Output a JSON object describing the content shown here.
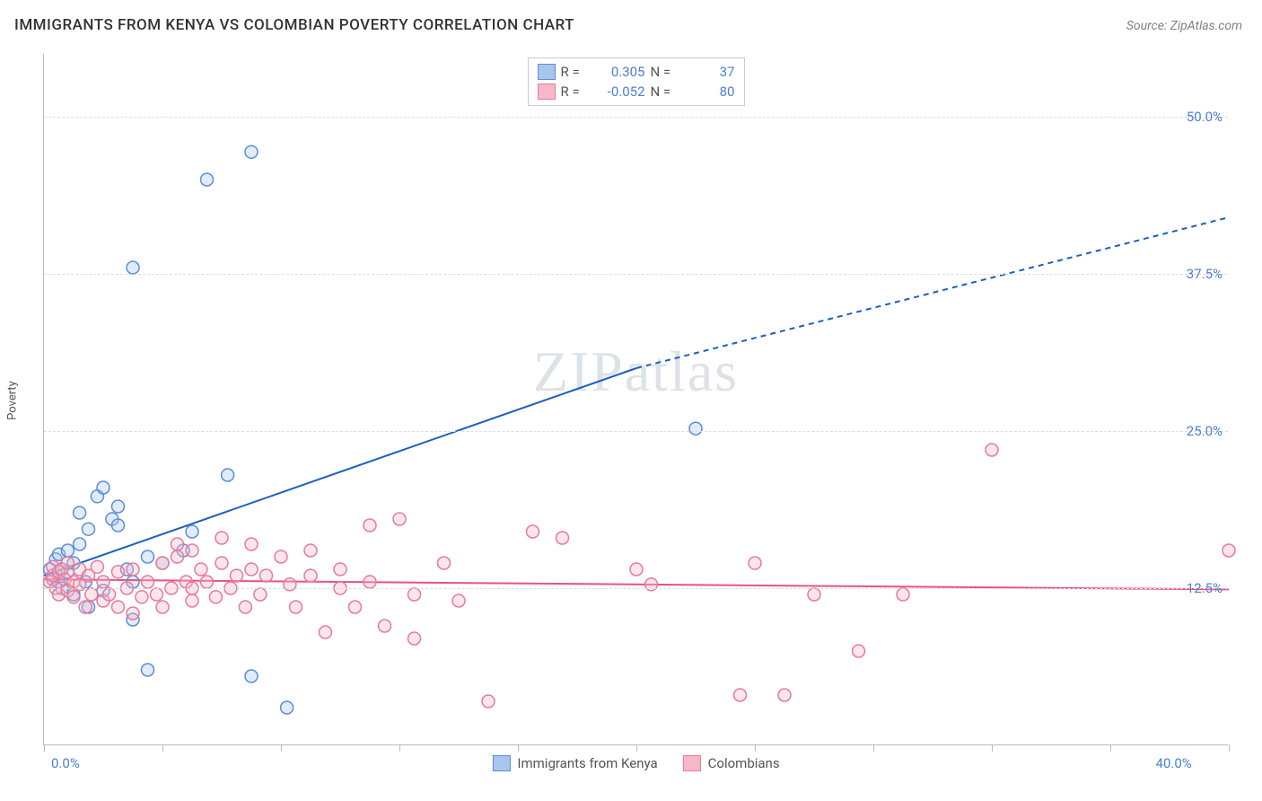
{
  "title": "IMMIGRANTS FROM KENYA VS COLOMBIAN POVERTY CORRELATION CHART",
  "source": "Source: ZipAtlas.com",
  "ylabel": "Poverty",
  "watermark": "ZIPatlas",
  "chart": {
    "type": "scatter",
    "xlim": [
      0,
      40
    ],
    "ylim": [
      0,
      55
    ],
    "xticks": [
      0,
      4,
      8,
      12,
      16,
      20,
      24,
      28,
      32,
      36,
      40
    ],
    "xlabels_visible": {
      "0": "0.0%",
      "40": "40.0%"
    },
    "yticks": [
      12.5,
      25.0,
      37.5,
      50.0
    ],
    "ylabels": [
      "12.5%",
      "25.0%",
      "37.5%",
      "50.0%"
    ],
    "grid_color": "#dddddd",
    "axis_color": "#bbbbbb",
    "background_color": "#ffffff",
    "marker_radius": 7,
    "marker_stroke_width": 1.5,
    "marker_fill_opacity": 0.35,
    "trend_line_width": 2,
    "series": [
      {
        "name": "Immigrants from Kenya",
        "color_fill": "#a8c6ed",
        "color_stroke": "#5b8fd4",
        "trend_color": "#1b5fc1",
        "R": "0.305",
        "N": "37",
        "trend": {
          "x1": 0,
          "y1": 13.5,
          "x2": 20,
          "y2": 30.0,
          "dash_from_x": 20,
          "dash_to_x": 40,
          "dash_to_y": 42.0
        },
        "points": [
          [
            0.2,
            14.0
          ],
          [
            0.3,
            13.2
          ],
          [
            0.4,
            14.8
          ],
          [
            0.5,
            13.0
          ],
          [
            0.5,
            15.2
          ],
          [
            0.6,
            12.5
          ],
          [
            0.6,
            14.0
          ],
          [
            0.8,
            13.8
          ],
          [
            0.8,
            15.5
          ],
          [
            1.0,
            12.0
          ],
          [
            1.0,
            14.5
          ],
          [
            1.2,
            18.5
          ],
          [
            1.2,
            16.0
          ],
          [
            1.4,
            13.0
          ],
          [
            1.5,
            17.2
          ],
          [
            1.5,
            11.0
          ],
          [
            1.8,
            19.8
          ],
          [
            2.0,
            12.3
          ],
          [
            2.0,
            20.5
          ],
          [
            2.3,
            18.0
          ],
          [
            2.5,
            19.0
          ],
          [
            2.5,
            17.5
          ],
          [
            2.8,
            14.0
          ],
          [
            3.0,
            13.0
          ],
          [
            3.0,
            10.0
          ],
          [
            3.0,
            38.0
          ],
          [
            3.5,
            15.0
          ],
          [
            3.5,
            6.0
          ],
          [
            4.0,
            14.5
          ],
          [
            4.7,
            15.5
          ],
          [
            5.0,
            17.0
          ],
          [
            5.5,
            45.0
          ],
          [
            6.2,
            21.5
          ],
          [
            7.0,
            47.2
          ],
          [
            7.0,
            5.5
          ],
          [
            8.2,
            3.0
          ],
          [
            22.0,
            25.2
          ]
        ]
      },
      {
        "name": "Colombians",
        "color_fill": "#f5b8c8",
        "color_stroke": "#e77b9a",
        "trend_color": "#e85285",
        "R": "-0.052",
        "N": "80",
        "trend": {
          "x1": 0,
          "y1": 13.2,
          "x2": 40,
          "y2": 12.4
        },
        "points": [
          [
            0.2,
            13.0
          ],
          [
            0.3,
            13.5
          ],
          [
            0.3,
            14.2
          ],
          [
            0.4,
            12.5
          ],
          [
            0.5,
            13.8
          ],
          [
            0.5,
            12.0
          ],
          [
            0.6,
            14.0
          ],
          [
            0.7,
            13.2
          ],
          [
            0.8,
            12.3
          ],
          [
            0.8,
            14.5
          ],
          [
            1.0,
            11.8
          ],
          [
            1.0,
            13.0
          ],
          [
            1.2,
            12.8
          ],
          [
            1.2,
            14.0
          ],
          [
            1.4,
            11.0
          ],
          [
            1.5,
            13.5
          ],
          [
            1.6,
            12.0
          ],
          [
            1.8,
            14.2
          ],
          [
            2.0,
            11.5
          ],
          [
            2.0,
            13.0
          ],
          [
            2.2,
            12.0
          ],
          [
            2.5,
            11.0
          ],
          [
            2.5,
            13.8
          ],
          [
            2.8,
            12.5
          ],
          [
            3.0,
            10.5
          ],
          [
            3.0,
            14.0
          ],
          [
            3.3,
            11.8
          ],
          [
            3.5,
            13.0
          ],
          [
            3.8,
            12.0
          ],
          [
            4.0,
            14.5
          ],
          [
            4.0,
            11.0
          ],
          [
            4.3,
            12.5
          ],
          [
            4.5,
            16.0
          ],
          [
            4.5,
            15.0
          ],
          [
            4.8,
            13.0
          ],
          [
            5.0,
            11.5
          ],
          [
            5.0,
            12.5
          ],
          [
            5.0,
            15.5
          ],
          [
            5.3,
            14.0
          ],
          [
            5.5,
            13.0
          ],
          [
            5.8,
            11.8
          ],
          [
            6.0,
            14.5
          ],
          [
            6.0,
            16.5
          ],
          [
            6.3,
            12.5
          ],
          [
            6.5,
            13.5
          ],
          [
            6.8,
            11.0
          ],
          [
            7.0,
            16.0
          ],
          [
            7.0,
            14.0
          ],
          [
            7.3,
            12.0
          ],
          [
            7.5,
            13.5
          ],
          [
            8.0,
            15.0
          ],
          [
            8.3,
            12.8
          ],
          [
            8.5,
            11.0
          ],
          [
            9.0,
            13.5
          ],
          [
            9.0,
            15.5
          ],
          [
            9.5,
            9.0
          ],
          [
            10.0,
            14.0
          ],
          [
            10.0,
            12.5
          ],
          [
            10.5,
            11.0
          ],
          [
            11.0,
            17.5
          ],
          [
            11.0,
            13.0
          ],
          [
            11.5,
            9.5
          ],
          [
            12.0,
            18.0
          ],
          [
            12.5,
            12.0
          ],
          [
            12.5,
            8.5
          ],
          [
            13.5,
            14.5
          ],
          [
            14.0,
            11.5
          ],
          [
            15.0,
            3.5
          ],
          [
            16.5,
            17.0
          ],
          [
            17.5,
            16.5
          ],
          [
            20.0,
            14.0
          ],
          [
            20.5,
            12.8
          ],
          [
            23.5,
            4.0
          ],
          [
            24.0,
            14.5
          ],
          [
            25.0,
            4.0
          ],
          [
            26.0,
            12.0
          ],
          [
            27.5,
            7.5
          ],
          [
            29.0,
            12.0
          ],
          [
            32.0,
            23.5
          ],
          [
            40.0,
            15.5
          ]
        ]
      }
    ]
  },
  "legend_top": [
    {
      "swatch_fill": "#a8c6ed",
      "swatch_stroke": "#5b8fd4",
      "r_label": "R =",
      "r_val": "0.305",
      "n_label": "N =",
      "n_val": "37"
    },
    {
      "swatch_fill": "#f5b8c8",
      "swatch_stroke": "#e77b9a",
      "r_label": "R =",
      "r_val": "-0.052",
      "n_label": "N =",
      "n_val": "80"
    }
  ],
  "legend_bottom": [
    {
      "swatch_fill": "#a8c6ed",
      "swatch_stroke": "#5b8fd4",
      "label": "Immigrants from Kenya"
    },
    {
      "swatch_fill": "#f5b8c8",
      "swatch_stroke": "#e77b9a",
      "label": "Colombians"
    }
  ]
}
